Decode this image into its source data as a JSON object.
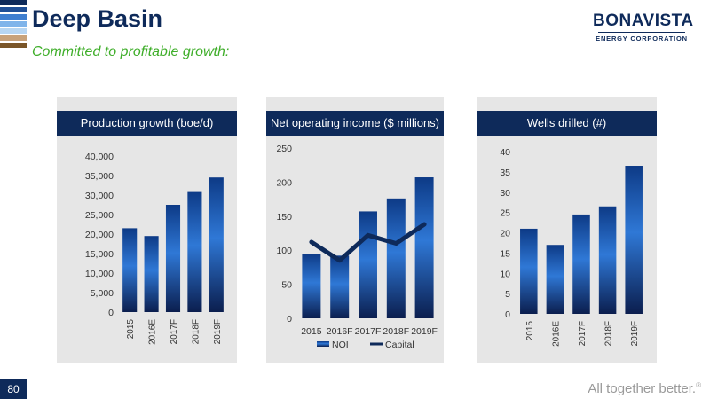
{
  "header": {
    "title": "Deep Basin",
    "subtitle": "Committed to profitable growth:",
    "stripe_colors": [
      "#0e2a5a",
      "#1f4f96",
      "#3f7fd0",
      "#7fb4ea",
      "#b7d6f2",
      "#c8a27a",
      "#7a5528"
    ]
  },
  "logo": {
    "name": "BONAVISTA",
    "sub": "ENERGY CORPORATION"
  },
  "footer": {
    "page_number": "80",
    "tagline": "All together better.",
    "trademark": "®"
  },
  "colors": {
    "navy": "#0e2a5a",
    "bar_top": "#0d3a86",
    "bar_mid": "#2f78d6",
    "bar_bottom": "#0b1e4e",
    "panel_bg": "#e6e6e6"
  },
  "chart_data": [
    {
      "type": "bar",
      "title": "Production growth (boe/d)",
      "categories": [
        "2015",
        "2016E",
        "2017F",
        "2018F",
        "2019F"
      ],
      "values": [
        21500,
        19500,
        27500,
        31000,
        34500
      ],
      "ylim": [
        0,
        40000
      ],
      "yticks": [
        "0",
        "5,000",
        "10,000",
        "15,000",
        "20,000",
        "25,000",
        "30,000",
        "35,000",
        "40,000"
      ],
      "ytick_values": [
        0,
        5000,
        10000,
        15000,
        20000,
        25000,
        30000,
        35000,
        40000
      ],
      "rotated_xlabels": true,
      "legend": null
    },
    {
      "type": "bar",
      "title": "Net operating income ($ millions)",
      "categories": [
        "2015",
        "2016F",
        "2017F",
        "2018F",
        "2019F"
      ],
      "series": [
        {
          "name": "NOI",
          "type": "bar",
          "values": [
            95,
            92,
            157,
            176,
            207
          ]
        },
        {
          "name": "Capital",
          "type": "line",
          "values": [
            112,
            85,
            122,
            110,
            138
          ]
        }
      ],
      "ylim": [
        0,
        250
      ],
      "yticks": [
        "0",
        "50",
        "100",
        "150",
        "200",
        "250"
      ],
      "ytick_values": [
        0,
        50,
        100,
        150,
        200,
        250
      ],
      "rotated_xlabels": false,
      "legend": "bottom"
    },
    {
      "type": "bar",
      "title": "Wells drilled (#)",
      "categories": [
        "2015",
        "2016E",
        "2017F",
        "2018F",
        "2019F"
      ],
      "values": [
        21,
        17,
        24.5,
        26.5,
        36.5
      ],
      "ylim": [
        0,
        40
      ],
      "yticks": [
        "0",
        "5",
        "10",
        "15",
        "20",
        "25",
        "30",
        "35",
        "40"
      ],
      "ytick_values": [
        0,
        5,
        10,
        15,
        20,
        25,
        30,
        35,
        40
      ],
      "rotated_xlabels": true,
      "legend": null
    }
  ]
}
